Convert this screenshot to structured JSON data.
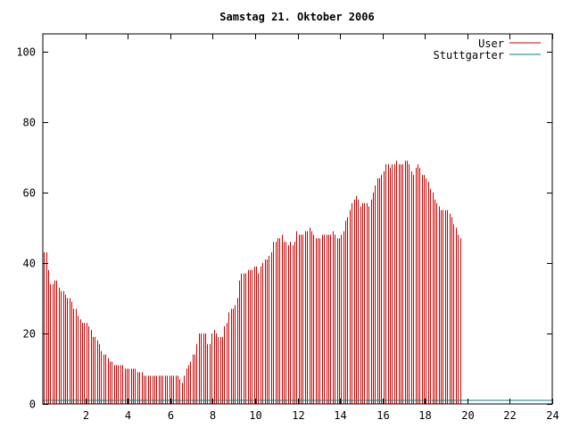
{
  "chart_data": {
    "type": "bar",
    "title": "Samstag 21. Oktober 2006",
    "xlabel": "",
    "ylabel": "",
    "xlim": [
      0,
      24
    ],
    "ylim": [
      0,
      105
    ],
    "xticks": [
      "2",
      "4",
      "6",
      "8",
      "10",
      "12",
      "14",
      "16",
      "18",
      "20",
      "22",
      "24"
    ],
    "yticks": [
      "0",
      "20",
      "40",
      "60",
      "80",
      "100"
    ],
    "legend_position": "top-right",
    "grid": false,
    "series": [
      {
        "name": "User",
        "color": "#cc0000",
        "bar_step_hours": 0.1,
        "values": [
          43,
          43,
          38,
          34,
          34,
          35,
          35,
          33,
          32,
          32,
          31,
          30,
          30,
          29,
          27,
          27,
          25,
          24,
          23,
          23,
          23,
          22,
          21,
          19,
          19,
          18,
          17,
          15,
          14,
          14,
          13,
          12,
          12,
          11,
          11,
          11,
          11,
          11,
          10,
          10,
          10,
          10,
          10,
          10,
          9,
          9,
          9,
          8,
          8,
          8,
          8,
          8,
          8,
          8,
          8,
          8,
          8,
          8,
          8,
          8,
          8,
          8,
          8,
          8,
          7,
          6,
          8,
          10,
          11,
          12,
          14,
          14,
          17,
          20,
          20,
          20,
          20,
          17,
          17,
          20,
          21,
          20,
          19,
          19,
          19,
          22,
          23,
          26,
          27,
          27,
          28,
          30,
          35,
          37,
          37,
          37,
          38,
          38,
          38,
          39,
          39,
          37,
          39,
          40,
          41,
          41,
          42,
          43,
          46,
          46,
          47,
          47,
          48,
          46,
          46,
          45,
          46,
          45,
          46,
          49,
          48,
          48,
          48,
          49,
          49,
          50,
          49,
          48,
          47,
          47,
          47,
          48,
          48,
          48,
          48,
          48,
          49,
          48,
          47,
          47,
          48,
          49,
          52,
          53,
          55,
          57,
          58,
          59,
          58,
          56,
          57,
          57,
          57,
          56,
          58,
          60,
          62,
          64,
          64,
          65,
          66,
          68,
          68,
          67,
          68,
          68,
          69,
          68,
          68,
          68,
          69,
          69,
          68,
          66,
          65,
          67,
          68,
          67,
          65,
          65,
          64,
          63,
          61,
          60,
          58,
          57,
          56,
          55,
          55,
          55,
          55,
          54,
          53,
          51,
          50,
          48,
          47
        ]
      },
      {
        "name": "Stuttgarter",
        "color": "#008080",
        "values": [
          1
        ]
      }
    ]
  }
}
